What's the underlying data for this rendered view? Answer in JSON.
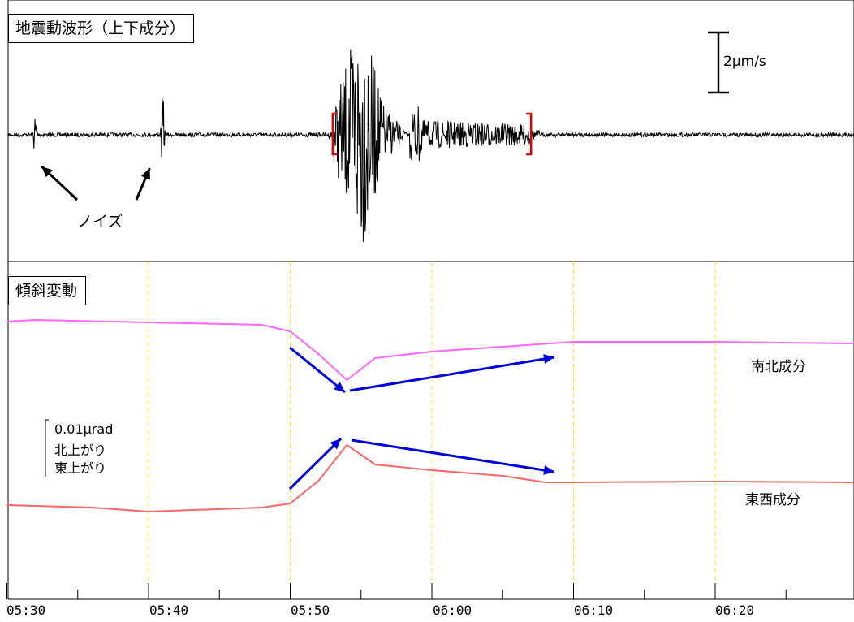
{
  "panels": {
    "waveform": {
      "title": "地震動波形（上下成分）",
      "scale_label": "2μm/s",
      "noise_label": "ノイズ"
    },
    "tilt": {
      "title": "傾斜変動",
      "scale_label_1": "0.01μrad",
      "scale_label_2": "北上がり",
      "scale_label_3": "東上がり"
    }
  },
  "colors": {
    "waveform": "#000000",
    "bracket": "#e00000",
    "north_south": "#ff66ff",
    "east_west": "#ff6666",
    "arrows": "#0000dd",
    "gridlines": "#ffe600"
  },
  "chart_data": [
    {
      "type": "line",
      "title": "地震動波形（上下成分）",
      "x_range": [
        "05:30",
        "06:28"
      ],
      "ylabel": "",
      "scale_bar": "2μm/s",
      "annotations": [
        "ノイズ"
      ],
      "events": [
        {
          "name": "ノイズ",
          "time": "05:32"
        },
        {
          "name": "ノイズ",
          "time": "05:41"
        },
        {
          "name": "地震",
          "start": "05:53",
          "peak": "05:55",
          "end": "06:07"
        }
      ]
    },
    {
      "type": "line",
      "title": "傾斜変動",
      "categories": [
        "05:30",
        "05:40",
        "05:50",
        "06:00",
        "06:10",
        "06:20"
      ],
      "grid": true,
      "scale_bar": "0.01μrad",
      "series": [
        {
          "name": "南北成分",
          "x": [
            "05:30",
            "05:32",
            "05:40",
            "05:48",
            "05:50",
            "05:52",
            "05:54",
            "05:56",
            "06:00",
            "06:05",
            "06:10",
            "06:20",
            "06:28"
          ],
          "values": [
            0.0,
            0.0002,
            -0.0001,
            -0.0004,
            -0.0012,
            -0.004,
            -0.0072,
            -0.0045,
            -0.0037,
            -0.0031,
            -0.0025,
            -0.0025,
            -0.0027
          ]
        },
        {
          "name": "東西成分",
          "x": [
            "05:30",
            "05:36",
            "05:40",
            "05:48",
            "05:50",
            "05:52",
            "05:54",
            "05:56",
            "06:00",
            "06:05",
            "06:08",
            "06:10",
            "06:20",
            "06:28"
          ],
          "values": [
            0.0,
            -0.0003,
            -0.0008,
            -0.0003,
            0.0002,
            0.003,
            0.0074,
            0.005,
            0.0043,
            0.0036,
            0.0028,
            0.0028,
            0.0029,
            0.0028
          ]
        }
      ]
    }
  ]
}
